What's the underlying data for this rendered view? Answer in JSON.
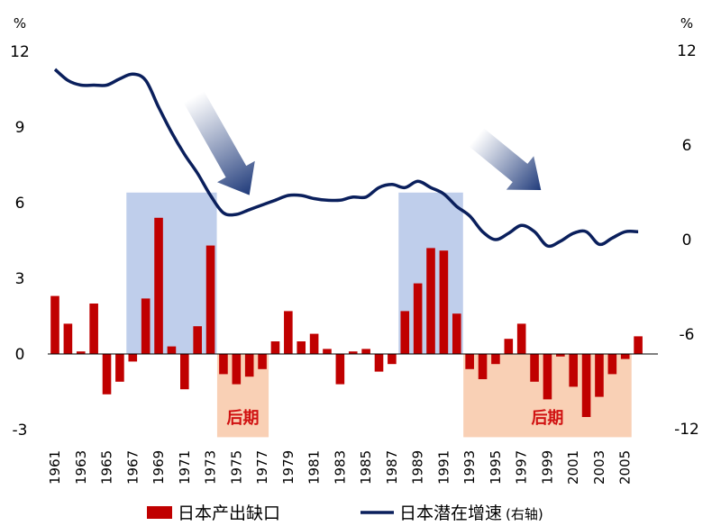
{
  "chart_data": {
    "type": "bar+line",
    "left_axis": {
      "unit": "%",
      "ticks": [
        "12",
        "9",
        "6",
        "3",
        "0",
        "-3"
      ],
      "ylim": [
        -3,
        12
      ]
    },
    "right_axis": {
      "unit": "%",
      "ticks": [
        "12",
        "6",
        "0",
        "-6",
        "-12"
      ],
      "ylim": [
        -12,
        12
      ]
    },
    "x_ticks": [
      "1961",
      "1963",
      "1965",
      "1967",
      "1969",
      "1971",
      "1973",
      "1975",
      "1977",
      "1979",
      "1981",
      "1983",
      "1985",
      "1987",
      "1989",
      "1991",
      "1993",
      "1995",
      "1997",
      "1999",
      "2001",
      "2003",
      "2005"
    ],
    "years": [
      1961,
      1962,
      1963,
      1964,
      1965,
      1966,
      1967,
      1968,
      1969,
      1970,
      1971,
      1972,
      1973,
      1974,
      1975,
      1976,
      1977,
      1978,
      1979,
      1980,
      1981,
      1982,
      1983,
      1984,
      1985,
      1986,
      1987,
      1988,
      1989,
      1990,
      1991,
      1992,
      1993,
      1994,
      1995,
      1996,
      1997,
      1998,
      1999,
      2000,
      2001,
      2002,
      2003,
      2004,
      2005,
      2006
    ],
    "series": [
      {
        "name": "日本产出缺口",
        "axis": "left",
        "color": "#c00000",
        "values": [
          2.3,
          1.2,
          0.1,
          2.0,
          -1.6,
          -1.1,
          -0.3,
          2.2,
          5.4,
          0.3,
          -1.4,
          1.1,
          4.3,
          -0.8,
          -1.2,
          -0.9,
          -0.6,
          0.5,
          1.7,
          0.5,
          0.8,
          0.2,
          -1.2,
          0.1,
          0.2,
          -0.7,
          -0.4,
          1.7,
          2.8,
          4.2,
          4.1,
          1.6,
          -0.6,
          -1.0,
          -0.4,
          0.6,
          1.2,
          -1.1,
          -1.8,
          -0.1,
          -1.3,
          -2.5,
          -1.7,
          -0.8,
          -0.2,
          0.7
        ]
      },
      {
        "name": "日本潜在增速",
        "axis_label": "(右轴)",
        "axis": "right",
        "color": "#0a1f5c",
        "values": [
          10.8,
          10.1,
          9.8,
          9.8,
          9.8,
          10.2,
          10.5,
          10.1,
          8.4,
          6.8,
          5.4,
          4.2,
          2.8,
          1.7,
          1.6,
          1.9,
          2.2,
          2.5,
          2.8,
          2.8,
          2.6,
          2.5,
          2.5,
          2.7,
          2.7,
          3.3,
          3.5,
          3.3,
          3.7,
          3.3,
          2.9,
          2.1,
          1.5,
          0.5,
          0.0,
          0.4,
          0.9,
          0.5,
          -0.4,
          -0.1,
          0.4,
          0.5,
          -0.3,
          0.1,
          0.5,
          0.5
        ]
      }
    ],
    "shaded_regions": [
      {
        "from": 1967,
        "to": 1973,
        "color": "#b4c6e7",
        "label": ""
      },
      {
        "from": 1974,
        "to": 1977,
        "color": "#f8cbad",
        "label": "后期"
      },
      {
        "from": 1988,
        "to": 1992,
        "color": "#b4c6e7",
        "label": ""
      },
      {
        "from": 1993,
        "to": 2005,
        "color": "#f8cbad",
        "label": "后期"
      }
    ],
    "annotations": [
      {
        "type": "arrow",
        "from": [
          1971.7,
          10.2
        ],
        "to": [
          1976,
          6.3
        ],
        "axis": "left"
      },
      {
        "type": "arrow",
        "from": [
          1993.5,
          8.6
        ],
        "to": [
          1998.5,
          6.5
        ],
        "axis": "left"
      }
    ],
    "legend": {
      "position": "bottom",
      "items": [
        "日本产出缺口",
        "日本潜在增速",
        "(右轴)"
      ]
    },
    "grid": false
  }
}
